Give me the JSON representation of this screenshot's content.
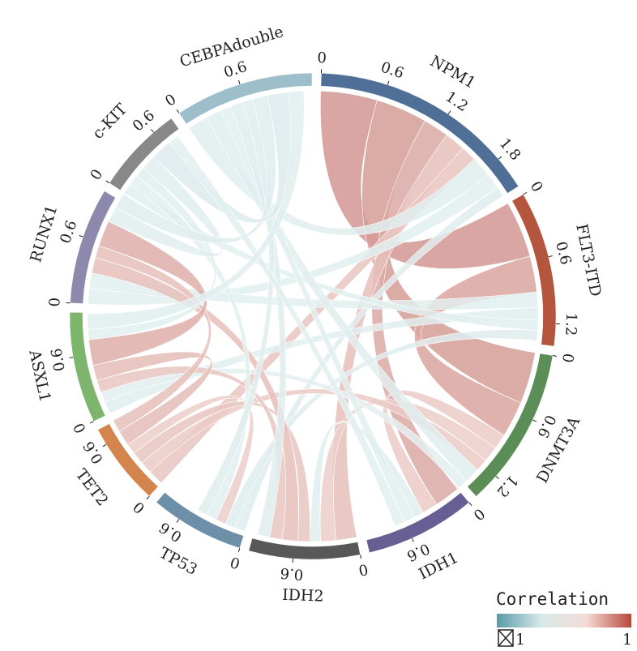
{
  "chart_data": {
    "type": "chord",
    "title": "",
    "segments": [
      {
        "name": "NPM1",
        "value": 2.1,
        "color": "#4f6f97",
        "ticks": [
          "0",
          "0.6",
          "1.2",
          "1.8"
        ]
      },
      {
        "name": "FLT3-ITD",
        "value": 1.4,
        "color": "#b4553e",
        "ticks": [
          "0",
          "0.6",
          "1.2"
        ]
      },
      {
        "name": "DNMT3A",
        "value": 1.45,
        "color": "#5b8e57",
        "ticks": [
          "0",
          "0.6",
          "1.2"
        ]
      },
      {
        "name": "IDH1",
        "value": 1.0,
        "color": "#675f93",
        "ticks": [
          "0",
          "0.6"
        ]
      },
      {
        "name": "IDH2",
        "value": 1.0,
        "color": "#585858",
        "ticks": [
          "0",
          "0.6"
        ]
      },
      {
        "name": "TP53",
        "value": 0.85,
        "color": "#6e8fa8",
        "ticks": [
          "0",
          "0.6"
        ]
      },
      {
        "name": "TET2",
        "value": 0.75,
        "color": "#d4844d",
        "ticks": [
          "0",
          "0.6"
        ]
      },
      {
        "name": "ASXL1",
        "value": 1.0,
        "color": "#7db56d",
        "ticks": [
          "0",
          "0.6"
        ]
      },
      {
        "name": "RUNX1",
        "value": 1.05,
        "color": "#8d89ac",
        "ticks": [
          "0",
          "0.6"
        ]
      },
      {
        "name": "c-KIT",
        "value": 0.8,
        "color": "#888888",
        "ticks": [
          "0",
          "0.6"
        ]
      },
      {
        "name": "CEBPAdouble",
        "value": 1.25,
        "color": "#9dbfcc",
        "ticks": [
          "0",
          "0.6"
        ]
      }
    ],
    "links": [
      {
        "source": "NPM1",
        "target": "FLT3-ITD",
        "value": 0.55,
        "correlation": 0.75
      },
      {
        "source": "NPM1",
        "target": "DNMT3A",
        "value": 0.5,
        "correlation": 0.7
      },
      {
        "source": "NPM1",
        "target": "IDH1",
        "value": 0.25,
        "correlation": 0.55
      },
      {
        "source": "NPM1",
        "target": "IDH2",
        "value": 0.2,
        "correlation": 0.3
      },
      {
        "source": "NPM1",
        "target": "TET2",
        "value": 0.15,
        "correlation": 0.25
      },
      {
        "source": "NPM1",
        "target": "CEBPAdouble",
        "value": 0.2,
        "correlation": -0.15
      },
      {
        "source": "NPM1",
        "target": "RUNX1",
        "value": 0.15,
        "correlation": -0.1
      },
      {
        "source": "NPM1",
        "target": "TP53",
        "value": 0.1,
        "correlation": -0.2
      },
      {
        "source": "FLT3-ITD",
        "target": "DNMT3A",
        "value": 0.35,
        "correlation": 0.6
      },
      {
        "source": "FLT3-ITD",
        "target": "RUNX1",
        "value": 0.15,
        "correlation": -0.1
      },
      {
        "source": "FLT3-ITD",
        "target": "ASXL1",
        "value": 0.12,
        "correlation": -0.15
      },
      {
        "source": "FLT3-ITD",
        "target": "c-KIT",
        "value": 0.1,
        "correlation": -0.1
      },
      {
        "source": "FLT3-ITD",
        "target": "TP53",
        "value": 0.1,
        "correlation": -0.2
      },
      {
        "source": "DNMT3A",
        "target": "IDH1",
        "value": 0.15,
        "correlation": 0.2
      },
      {
        "source": "DNMT3A",
        "target": "IDH2",
        "value": 0.15,
        "correlation": 0.15
      },
      {
        "source": "DNMT3A",
        "target": "TET2",
        "value": 0.12,
        "correlation": 0.2
      },
      {
        "source": "DNMT3A",
        "target": "CEBPAdouble",
        "value": 0.15,
        "correlation": -0.15
      },
      {
        "source": "DNMT3A",
        "target": "ASXL1",
        "value": 0.1,
        "correlation": -0.05
      },
      {
        "source": "IDH1",
        "target": "IDH2",
        "value": 0.1,
        "correlation": -0.15
      },
      {
        "source": "IDH1",
        "target": "CEBPAdouble",
        "value": 0.1,
        "correlation": -0.1
      },
      {
        "source": "IDH2",
        "target": "TET2",
        "value": 0.12,
        "correlation": 0.25
      },
      {
        "source": "IDH2",
        "target": "RUNX1",
        "value": 0.15,
        "correlation": 0.3
      },
      {
        "source": "IDH2",
        "target": "ASXL1",
        "value": 0.12,
        "correlation": 0.25
      },
      {
        "source": "IDH2",
        "target": "CEBPAdouble",
        "value": 0.12,
        "correlation": -0.2
      },
      {
        "source": "TP53",
        "target": "TET2",
        "value": 0.1,
        "correlation": 0.15
      },
      {
        "source": "TP53",
        "target": "c-KIT",
        "value": 0.1,
        "correlation": -0.1
      },
      {
        "source": "TP53",
        "target": "CEBPAdouble",
        "value": 0.1,
        "correlation": -0.2
      },
      {
        "source": "TET2",
        "target": "ASXL1",
        "value": 0.15,
        "correlation": 0.35
      },
      {
        "source": "TET2",
        "target": "RUNX1",
        "value": 0.12,
        "correlation": 0.3
      },
      {
        "source": "ASXL1",
        "target": "RUNX1",
        "value": 0.25,
        "correlation": 0.5
      },
      {
        "source": "ASXL1",
        "target": "c-KIT",
        "value": 0.1,
        "correlation": -0.1
      },
      {
        "source": "RUNX1",
        "target": "c-KIT",
        "value": 0.15,
        "correlation": -0.15
      },
      {
        "source": "RUNX1",
        "target": "CEBPAdouble",
        "value": 0.15,
        "correlation": -0.2
      },
      {
        "source": "c-KIT",
        "target": "CEBPAdouble",
        "value": 0.2,
        "correlation": -0.25
      },
      {
        "source": "c-KIT",
        "target": "IDH1",
        "value": 0.1,
        "correlation": -0.1
      },
      {
        "source": "CEBPAdouble",
        "target": "ASXL1",
        "value": 0.15,
        "correlation": -0.15
      }
    ],
    "legend": {
      "title": "Correlation",
      "min_label": "1",
      "max_label": "1",
      "gradient_colors": [
        "#5a9aa8",
        "#d8e9ea",
        "#f3dcd6",
        "#b8473a"
      ],
      "placement": "bottom-right"
    }
  }
}
